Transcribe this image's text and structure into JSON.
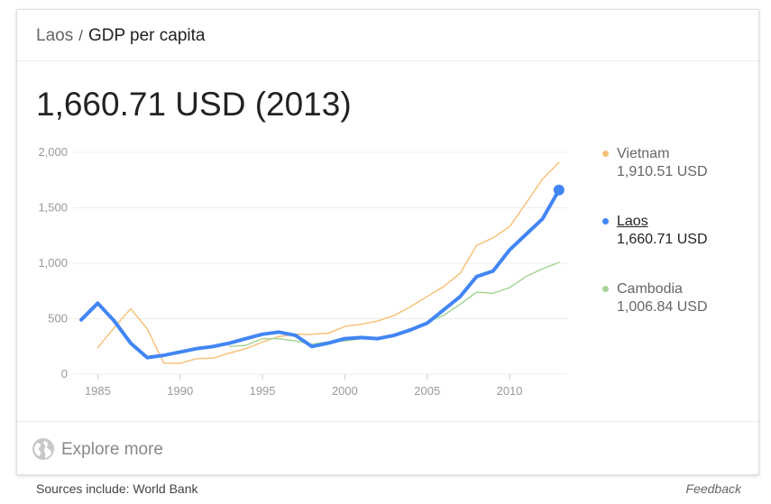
{
  "header": {
    "country": "Laos",
    "separator": "/",
    "indicator": "GDP per capita"
  },
  "main_value": "1,660.71 USD (2013)",
  "legend": [
    {
      "name": "Vietnam",
      "value": "1,910.51 USD",
      "color": "#f5c27a",
      "active": false
    },
    {
      "name": "Laos",
      "value": "1,660.71 USD",
      "color": "#4285f4",
      "active": true
    },
    {
      "name": "Cambodia",
      "value": "1,006.84 USD",
      "color": "#a8d597",
      "active": false
    }
  ],
  "footer": {
    "explore_label": "Explore more",
    "sources": "Sources include: World Bank",
    "feedback": "Feedback"
  },
  "chart_data": {
    "type": "line",
    "xlabel": "",
    "ylabel": "",
    "xlim": [
      1983.5,
      2013.5
    ],
    "ylim": [
      0,
      2000
    ],
    "x_ticks": [
      1985,
      1990,
      1995,
      2000,
      2005,
      2010
    ],
    "x_tick_labels": [
      "1985",
      "1990",
      "1995",
      "2000",
      "2005",
      "2010"
    ],
    "y_ticks": [
      0,
      500,
      1000,
      1500,
      2000
    ],
    "y_tick_labels": [
      "0",
      "500",
      "1,000",
      "1,500",
      "2,000"
    ],
    "grid": true,
    "series": [
      {
        "name": "Vietnam",
        "color": "#f5c27a",
        "width": 1.5,
        "x": [
          1985,
          1986,
          1987,
          1988,
          1989,
          1990,
          1991,
          1992,
          1993,
          1994,
          1995,
          1996,
          1997,
          1998,
          1999,
          2000,
          2001,
          2002,
          2003,
          2004,
          2005,
          2006,
          2007,
          2008,
          2009,
          2010,
          2011,
          2012,
          2013
        ],
        "y": [
          240,
          420,
          590,
          410,
          100,
          98,
          140,
          145,
          190,
          230,
          290,
          340,
          360,
          360,
          370,
          430,
          450,
          480,
          530,
          610,
          700,
          790,
          910,
          1160,
          1230,
          1330,
          1540,
          1760,
          1910
        ]
      },
      {
        "name": "Cambodia",
        "color": "#a8d597",
        "width": 1.5,
        "x": [
          1993,
          1994,
          1995,
          1996,
          1997,
          1998,
          1999,
          2000,
          2001,
          2002,
          2003,
          2004,
          2005,
          2006,
          2007,
          2008,
          2009,
          2010,
          2011,
          2012,
          2013
        ],
        "y": [
          250,
          260,
          320,
          320,
          300,
          270,
          290,
          300,
          320,
          330,
          350,
          400,
          470,
          530,
          630,
          740,
          730,
          780,
          880,
          950,
          1007
        ]
      },
      {
        "name": "Laos",
        "color": "#4285f4",
        "width": 4,
        "x": [
          1984,
          1985,
          1986,
          1987,
          1988,
          1989,
          1990,
          1991,
          1992,
          1993,
          1994,
          1995,
          1996,
          1997,
          1998,
          1999,
          2000,
          2001,
          2002,
          2003,
          2004,
          2005,
          2006,
          2007,
          2008,
          2009,
          2010,
          2011,
          2012,
          2013
        ],
        "y": [
          490,
          640,
          480,
          280,
          150,
          170,
          200,
          230,
          250,
          280,
          320,
          360,
          380,
          350,
          250,
          280,
          320,
          330,
          320,
          350,
          400,
          460,
          580,
          700,
          880,
          930,
          1120,
          1260,
          1400,
          1661
        ]
      }
    ]
  }
}
